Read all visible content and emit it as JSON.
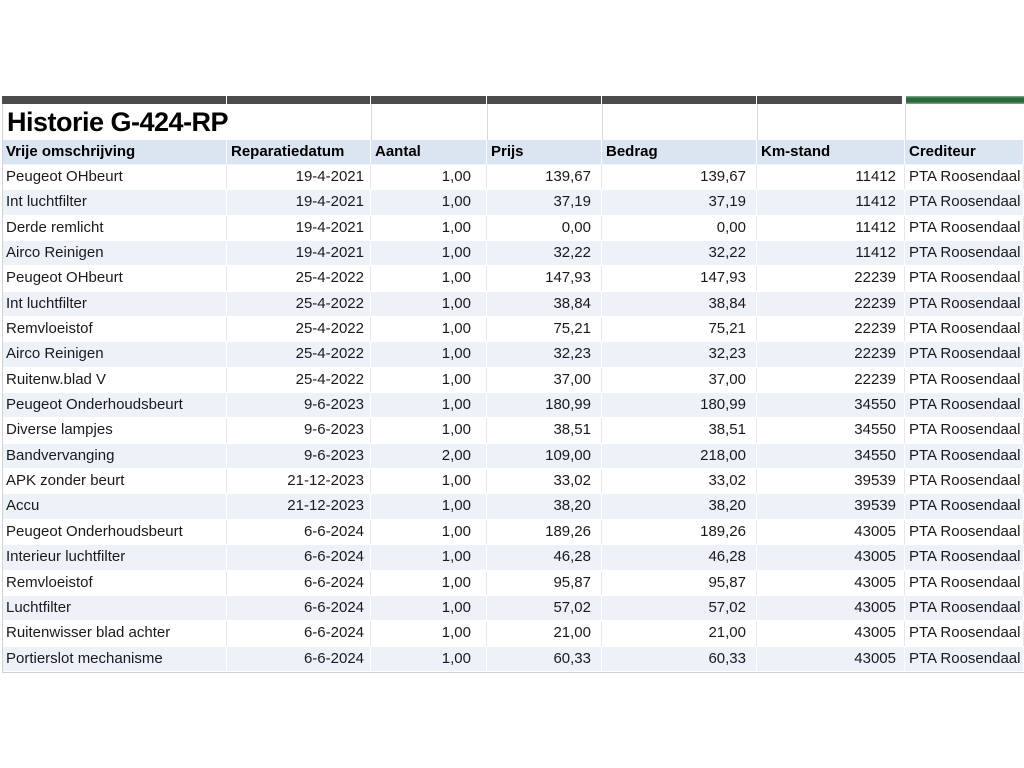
{
  "title": "Historie G-424-RP",
  "colors": {
    "top_border_gray": "#4c4c4c",
    "top_border_green": "#2a683c",
    "header_bg": "#dbe5f1",
    "band_bg": "#edf2f9"
  },
  "table": {
    "columns": [
      "Vrije omschrijving",
      "Reparatiedatum",
      "Aantal",
      "Prijs",
      "Bedrag",
      "Km-stand",
      "Crediteur"
    ],
    "rows": [
      [
        "Peugeot OHbeurt",
        "19-4-2021",
        "1,00",
        "139,67",
        "139,67",
        "11412",
        "PTA Roosendaal"
      ],
      [
        "Int luchtfilter",
        "19-4-2021",
        "1,00",
        "37,19",
        "37,19",
        "11412",
        "PTA Roosendaal"
      ],
      [
        "Derde remlicht",
        "19-4-2021",
        "1,00",
        "0,00",
        "0,00",
        "11412",
        "PTA Roosendaal"
      ],
      [
        "Airco Reinigen",
        "19-4-2021",
        "1,00",
        "32,22",
        "32,22",
        "11412",
        "PTA Roosendaal"
      ],
      [
        "Peugeot OHbeurt",
        "25-4-2022",
        "1,00",
        "147,93",
        "147,93",
        "22239",
        "PTA Roosendaal"
      ],
      [
        "Int luchtfilter",
        "25-4-2022",
        "1,00",
        "38,84",
        "38,84",
        "22239",
        "PTA Roosendaal"
      ],
      [
        "Remvloeistof",
        "25-4-2022",
        "1,00",
        "75,21",
        "75,21",
        "22239",
        "PTA Roosendaal"
      ],
      [
        "Airco Reinigen",
        "25-4-2022",
        "1,00",
        "32,23",
        "32,23",
        "22239",
        "PTA Roosendaal"
      ],
      [
        "Ruitenw.blad V",
        "25-4-2022",
        "1,00",
        "37,00",
        "37,00",
        "22239",
        "PTA Roosendaal"
      ],
      [
        "Peugeot Onderhoudsbeurt",
        "9-6-2023",
        "1,00",
        "180,99",
        "180,99",
        "34550",
        "PTA Roosendaal"
      ],
      [
        "Diverse lampjes",
        "9-6-2023",
        "1,00",
        "38,51",
        "38,51",
        "34550",
        "PTA Roosendaal"
      ],
      [
        "Bandvervanging",
        "9-6-2023",
        "2,00",
        "109,00",
        "218,00",
        "34550",
        "PTA Roosendaal"
      ],
      [
        "APK zonder beurt",
        "21-12-2023",
        "1,00",
        "33,02",
        "33,02",
        "39539",
        "PTA Roosendaal"
      ],
      [
        "Accu",
        "21-12-2023",
        "1,00",
        "38,20",
        "38,20",
        "39539",
        "PTA Roosendaal"
      ],
      [
        "Peugeot Onderhoudsbeurt",
        "6-6-2024",
        "1,00",
        "189,26",
        "189,26",
        "43005",
        "PTA Roosendaal"
      ],
      [
        "Interieur luchtfilter",
        "6-6-2024",
        "1,00",
        "46,28",
        "46,28",
        "43005",
        "PTA Roosendaal"
      ],
      [
        "Remvloeistof",
        "6-6-2024",
        "1,00",
        "95,87",
        "95,87",
        "43005",
        "PTA Roosendaal"
      ],
      [
        "Luchtfilter",
        "6-6-2024",
        "1,00",
        "57,02",
        "57,02",
        "43005",
        "PTA Roosendaal"
      ],
      [
        "Ruitenwisser blad achter",
        "6-6-2024",
        "1,00",
        "21,00",
        "21,00",
        "43005",
        "PTA Roosendaal"
      ],
      [
        "Portierslot mechanisme",
        "6-6-2024",
        "1,00",
        "60,33",
        "60,33",
        "43005",
        "PTA Roosendaal"
      ]
    ]
  }
}
